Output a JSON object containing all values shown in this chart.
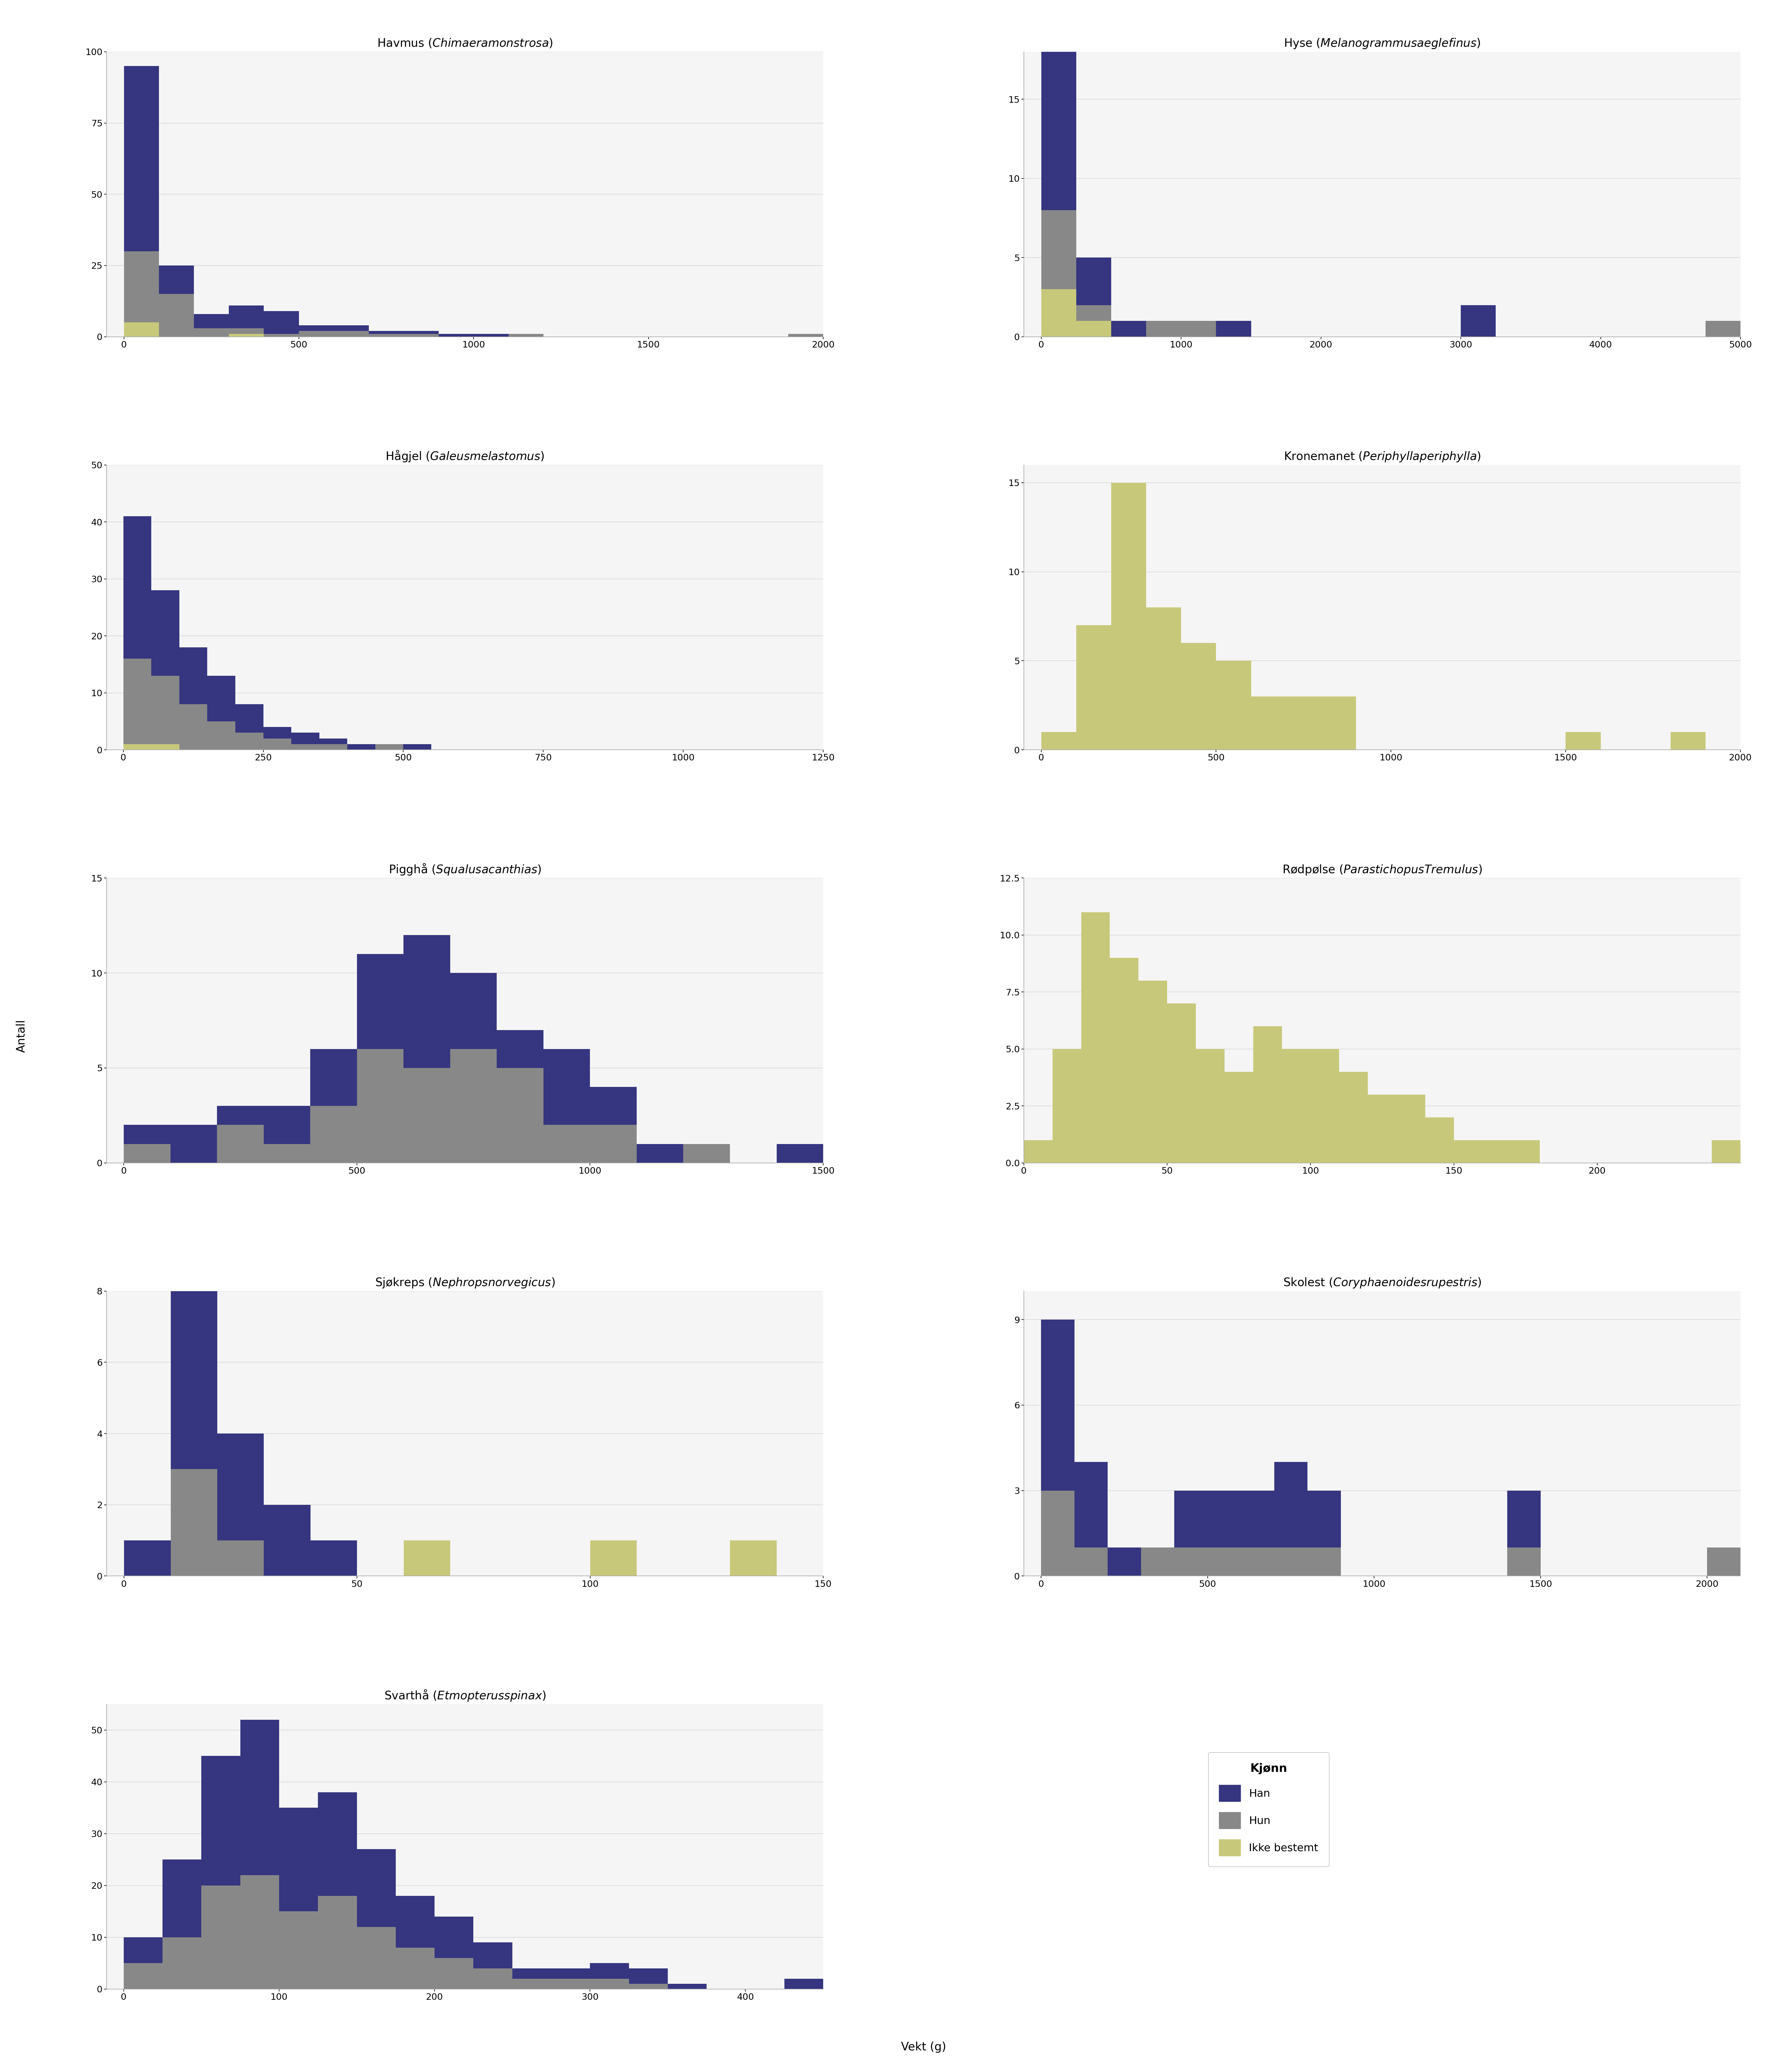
{
  "colors": {
    "han": "#353580",
    "hun": "#888888",
    "ikke_bestemt": "#C8C87A",
    "background": "#FFFFFF",
    "plot_bg": "#F5F5F5",
    "grid": "#D9D9D9"
  },
  "species": [
    {
      "name": "Havmus",
      "latin": "Chimaera monstrosa",
      "has_gender": true,
      "xlim": [
        -50,
        2000
      ],
      "ylim": [
        0,
        100
      ],
      "xticks": [
        0,
        500,
        1000,
        1500,
        2000
      ],
      "yticks": [
        0,
        25,
        50,
        75,
        100
      ],
      "bin_edges": [
        0,
        100,
        200,
        300,
        400,
        500,
        600,
        700,
        800,
        900,
        1000,
        1100,
        1200,
        1300,
        1400,
        1500,
        1600,
        1700,
        1800,
        1900,
        2000
      ],
      "han": [
        65,
        10,
        5,
        8,
        8,
        2,
        2,
        1,
        1,
        1,
        1,
        0,
        0,
        0,
        0,
        0,
        0,
        0,
        0,
        0
      ],
      "hun": [
        25,
        15,
        3,
        2,
        1,
        2,
        2,
        1,
        1,
        0,
        0,
        1,
        0,
        0,
        0,
        0,
        0,
        0,
        0,
        1
      ],
      "ikke": [
        5,
        0,
        0,
        1,
        0,
        0,
        0,
        0,
        0,
        0,
        0,
        0,
        0,
        0,
        0,
        0,
        0,
        0,
        0,
        0
      ]
    },
    {
      "name": "Hyse",
      "latin": "Melanogrammus aeglefinus",
      "has_gender": true,
      "xlim": [
        -125,
        5000
      ],
      "ylim": [
        0,
        18
      ],
      "xticks": [
        0,
        1000,
        2000,
        3000,
        4000,
        5000
      ],
      "yticks": [
        0,
        5,
        10,
        15
      ],
      "bin_edges": [
        0,
        250,
        500,
        750,
        1000,
        1250,
        1500,
        1750,
        2000,
        2250,
        2500,
        2750,
        3000,
        3250,
        3500,
        3750,
        4000,
        4250,
        4500,
        4750,
        5000
      ],
      "han": [
        10,
        3,
        1,
        0,
        0,
        1,
        0,
        0,
        0,
        0,
        0,
        0,
        2,
        0,
        0,
        0,
        0,
        0,
        0,
        0
      ],
      "hun": [
        5,
        1,
        0,
        1,
        1,
        0,
        0,
        0,
        0,
        0,
        0,
        0,
        0,
        0,
        0,
        0,
        0,
        0,
        0,
        1
      ],
      "ikke": [
        3,
        1,
        0,
        0,
        0,
        0,
        0,
        0,
        0,
        0,
        0,
        0,
        0,
        0,
        0,
        0,
        0,
        0,
        0,
        0
      ]
    },
    {
      "name": "Hågjel",
      "latin": "Galeus melastomus",
      "has_gender": true,
      "xlim": [
        -30,
        1250
      ],
      "ylim": [
        0,
        50
      ],
      "xticks": [
        0,
        250,
        500,
        750,
        1000,
        1250
      ],
      "yticks": [
        0,
        10,
        20,
        30,
        40,
        50
      ],
      "bin_edges": [
        0,
        50,
        100,
        150,
        200,
        250,
        300,
        350,
        400,
        450,
        500,
        550,
        600,
        650,
        700,
        750,
        800,
        850,
        900,
        950,
        1000,
        1050,
        1100,
        1150,
        1200,
        1250
      ],
      "han": [
        25,
        15,
        10,
        8,
        5,
        2,
        2,
        1,
        1,
        0,
        1,
        0,
        0,
        0,
        0,
        0,
        0,
        0,
        0,
        0,
        0,
        0,
        0,
        0,
        0
      ],
      "hun": [
        15,
        12,
        8,
        5,
        3,
        2,
        1,
        1,
        0,
        1,
        0,
        0,
        0,
        0,
        0,
        0,
        0,
        0,
        0,
        0,
        0,
        0,
        0,
        0,
        0
      ],
      "ikke": [
        1,
        1,
        0,
        0,
        0,
        0,
        0,
        0,
        0,
        0,
        0,
        0,
        0,
        0,
        0,
        0,
        0,
        0,
        0,
        0,
        0,
        0,
        0,
        0,
        0
      ]
    },
    {
      "name": "Kronemanet",
      "latin": "Periphylla periphylla",
      "has_gender": false,
      "xlim": [
        -50,
        2000
      ],
      "ylim": [
        0,
        16
      ],
      "xticks": [
        0,
        500,
        1000,
        1500,
        2000
      ],
      "yticks": [
        0,
        5,
        10,
        15
      ],
      "bin_edges": [
        0,
        100,
        200,
        300,
        400,
        500,
        600,
        700,
        800,
        900,
        1000,
        1100,
        1200,
        1300,
        1400,
        1500,
        1600,
        1700,
        1800,
        1900,
        2000
      ],
      "han": [
        0,
        0,
        0,
        0,
        0,
        0,
        0,
        0,
        0,
        0,
        0,
        0,
        0,
        0,
        0,
        0,
        0,
        0,
        0,
        0
      ],
      "hun": [
        0,
        0,
        0,
        0,
        0,
        0,
        0,
        0,
        0,
        0,
        0,
        0,
        0,
        0,
        0,
        0,
        0,
        0,
        0,
        0
      ],
      "ikke": [
        1,
        7,
        15,
        8,
        6,
        5,
        3,
        3,
        3,
        0,
        0,
        0,
        0,
        0,
        0,
        1,
        0,
        0,
        1,
        0
      ]
    },
    {
      "name": "Pigghå",
      "latin": "Squalus acanthias",
      "has_gender": true,
      "xlim": [
        -37,
        1500
      ],
      "ylim": [
        0,
        15
      ],
      "xticks": [
        0,
        500,
        1000,
        1500
      ],
      "yticks": [
        0,
        5,
        10,
        15
      ],
      "bin_edges": [
        0,
        100,
        200,
        300,
        400,
        500,
        600,
        700,
        800,
        900,
        1000,
        1100,
        1200,
        1300,
        1400,
        1500
      ],
      "han": [
        1,
        2,
        1,
        2,
        3,
        5,
        7,
        4,
        2,
        4,
        2,
        1,
        0,
        0,
        1
      ],
      "hun": [
        1,
        0,
        2,
        1,
        3,
        6,
        5,
        6,
        5,
        2,
        2,
        0,
        1,
        0,
        0
      ],
      "ikke": [
        0,
        0,
        0,
        0,
        0,
        0,
        0,
        0,
        0,
        0,
        0,
        0,
        0,
        0,
        0
      ]
    },
    {
      "name": "Rødpølse",
      "latin": "Parastichopus Tremulus",
      "has_gender": false,
      "xlim": [
        0,
        250
      ],
      "ylim": [
        0,
        12.5
      ],
      "xticks": [
        0,
        50,
        100,
        150,
        200
      ],
      "yticks": [
        0.0,
        2.5,
        5.0,
        7.5,
        10.0,
        12.5
      ],
      "bin_edges": [
        0,
        10,
        20,
        30,
        40,
        50,
        60,
        70,
        80,
        90,
        100,
        110,
        120,
        130,
        140,
        150,
        160,
        170,
        180,
        190,
        200,
        210,
        220,
        230,
        240,
        250
      ],
      "han": [
        0,
        0,
        0,
        0,
        0,
        0,
        0,
        0,
        0,
        0,
        0,
        0,
        0,
        0,
        0,
        0,
        0,
        0,
        0,
        0,
        0,
        0,
        0,
        0,
        0
      ],
      "hun": [
        0,
        0,
        0,
        0,
        0,
        0,
        0,
        0,
        0,
        0,
        0,
        0,
        0,
        0,
        0,
        0,
        0,
        0,
        0,
        0,
        0,
        0,
        0,
        0,
        0
      ],
      "ikke": [
        1,
        5,
        11,
        9,
        8,
        7,
        5,
        4,
        6,
        5,
        5,
        4,
        3,
        3,
        2,
        1,
        1,
        1,
        0,
        0,
        0,
        0,
        0,
        0,
        1
      ]
    },
    {
      "name": "Sjøkreps",
      "latin": "Nephrops norvegicus",
      "has_gender": true,
      "xlim": [
        -3.75,
        150
      ],
      "ylim": [
        0,
        8
      ],
      "xticks": [
        0,
        50,
        100,
        150
      ],
      "yticks": [
        0,
        2,
        4,
        6,
        8
      ],
      "bin_edges": [
        0,
        10,
        20,
        30,
        40,
        50,
        60,
        70,
        80,
        90,
        100,
        110,
        120,
        130,
        140,
        150
      ],
      "han": [
        1,
        5,
        3,
        2,
        1,
        0,
        0,
        0,
        0,
        0,
        0,
        0,
        0,
        0,
        0
      ],
      "hun": [
        0,
        3,
        1,
        0,
        0,
        0,
        0,
        0,
        0,
        0,
        0,
        0,
        0,
        0,
        0
      ],
      "ikke": [
        0,
        0,
        0,
        0,
        0,
        0,
        1,
        0,
        0,
        0,
        1,
        0,
        0,
        1,
        0
      ]
    },
    {
      "name": "Skolest",
      "latin": "Coryphaenoides rupestris",
      "has_gender": true,
      "xlim": [
        -52,
        2100
      ],
      "ylim": [
        0,
        10
      ],
      "xticks": [
        0,
        500,
        1000,
        1500,
        2000
      ],
      "yticks": [
        0,
        3,
        6,
        9
      ],
      "bin_edges": [
        0,
        100,
        200,
        300,
        400,
        500,
        600,
        700,
        800,
        900,
        1000,
        1100,
        1200,
        1300,
        1400,
        1500,
        1600,
        1700,
        1800,
        1900,
        2000,
        2100
      ],
      "han": [
        6,
        3,
        1,
        0,
        2,
        2,
        2,
        3,
        2,
        0,
        0,
        0,
        0,
        0,
        2,
        0,
        0,
        0,
        0,
        0,
        0
      ],
      "hun": [
        3,
        1,
        0,
        1,
        1,
        1,
        1,
        1,
        1,
        0,
        0,
        0,
        0,
        0,
        1,
        0,
        0,
        0,
        0,
        0,
        1
      ],
      "ikke": [
        0,
        0,
        0,
        0,
        0,
        0,
        0,
        0,
        0,
        0,
        0,
        0,
        0,
        0,
        0,
        0,
        0,
        0,
        0,
        0,
        0
      ]
    },
    {
      "name": "Svarthå",
      "latin": "Etmopterus spinax",
      "has_gender": true,
      "xlim": [
        -11,
        450
      ],
      "ylim": [
        0,
        55
      ],
      "xticks": [
        0,
        100,
        200,
        300,
        400
      ],
      "yticks": [
        0,
        10,
        20,
        30,
        40,
        50
      ],
      "bin_edges": [
        0,
        25,
        50,
        75,
        100,
        125,
        150,
        175,
        200,
        225,
        250,
        275,
        300,
        325,
        350,
        375,
        400,
        425,
        450
      ],
      "han": [
        5,
        15,
        25,
        30,
        20,
        20,
        15,
        10,
        8,
        5,
        2,
        2,
        3,
        3,
        1,
        0,
        0,
        2
      ],
      "hun": [
        5,
        10,
        20,
        22,
        15,
        18,
        12,
        8,
        6,
        4,
        2,
        2,
        2,
        1,
        0,
        0,
        0,
        0
      ],
      "ikke": [
        0,
        0,
        0,
        0,
        0,
        0,
        0,
        0,
        0,
        0,
        0,
        0,
        0,
        0,
        0,
        0,
        0,
        0
      ]
    }
  ],
  "ylabel": "Antall",
  "xlabel": "Vekt (g)",
  "legend_title": "Kjønn",
  "legend_items": [
    "Han",
    "Hun",
    "Ikke bestemt"
  ]
}
